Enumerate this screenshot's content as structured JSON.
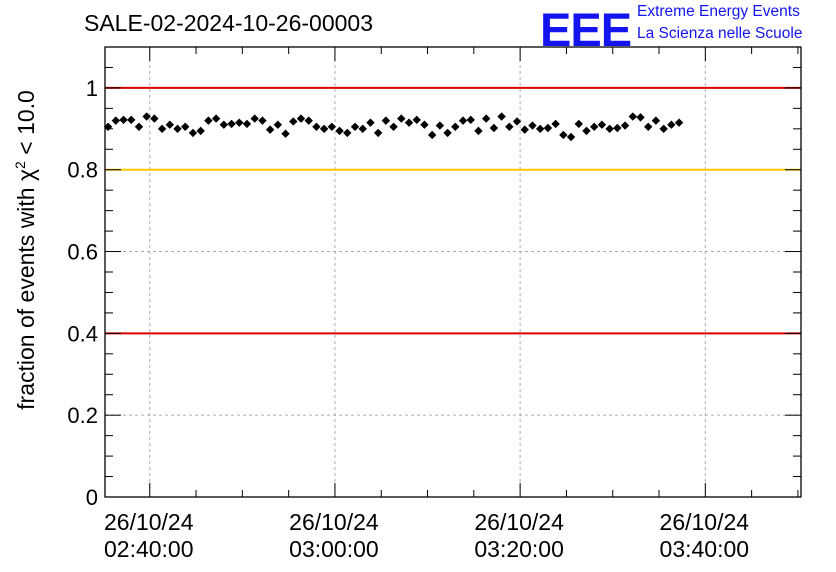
{
  "header": {
    "title": "SALE-02-2024-10-26-00003",
    "logo_text": "EEE",
    "logo_line1": "Extreme Energy Events",
    "logo_line2": "La Scienza nelle Scuole"
  },
  "colors": {
    "points": "#000000",
    "red_lines": "#e00000",
    "yellow_line": "#ffc800",
    "grid": "#aaaaaa",
    "logo": "#1414f0"
  },
  "chart_data": {
    "type": "scatter",
    "title": "SALE-02-2024-10-26-00003",
    "ylabel": "fraction of events with χ² < 10.0",
    "ylabel_main": "fraction of events with ",
    "ylabel_chi": "χ",
    "ylabel_sup": "2",
    "ylabel_tail": " < 10.0",
    "xlabel": "",
    "xlim": [
      "2024-10-26 02:35:10",
      "2024-10-26 03:50:20"
    ],
    "ylim": [
      0,
      1.1
    ],
    "grid": true,
    "x_ticks": [
      {
        "date": "26/10/24",
        "time": "02:40:00"
      },
      {
        "date": "26/10/24",
        "time": "03:00:00"
      },
      {
        "date": "26/10/24",
        "time": "03:20:00"
      },
      {
        "date": "26/10/24",
        "time": "03:40:00"
      }
    ],
    "y_ticks": [
      {
        "value": 0,
        "label": "0"
      },
      {
        "value": 0.2,
        "label": "0.2"
      },
      {
        "value": 0.4,
        "label": "0.4"
      },
      {
        "value": 0.6,
        "label": "0.6"
      },
      {
        "value": 0.8,
        "label": "0.8"
      },
      {
        "value": 1,
        "label": "1"
      }
    ],
    "reference_lines": [
      {
        "y": 1.0,
        "color": "#e00000"
      },
      {
        "y": 0.8,
        "color": "#ffc800"
      },
      {
        "y": 0.4,
        "color": "#e00000"
      }
    ],
    "x_start": "2024-10-26 02:35:30",
    "x_step_seconds": 50,
    "y_error": 0.008,
    "values": [
      0.905,
      0.92,
      0.922,
      0.922,
      0.905,
      0.93,
      0.925,
      0.9,
      0.91,
      0.9,
      0.905,
      0.89,
      0.895,
      0.92,
      0.925,
      0.91,
      0.912,
      0.915,
      0.912,
      0.925,
      0.92,
      0.898,
      0.91,
      0.888,
      0.918,
      0.925,
      0.92,
      0.905,
      0.9,
      0.905,
      0.895,
      0.89,
      0.905,
      0.9,
      0.915,
      0.89,
      0.92,
      0.905,
      0.925,
      0.915,
      0.922,
      0.91,
      0.885,
      0.908,
      0.89,
      0.905,
      0.92,
      0.922,
      0.895,
      0.925,
      0.902,
      0.93,
      0.905,
      0.918,
      0.898,
      0.908,
      0.9,
      0.902,
      0.912,
      0.885,
      0.88,
      0.912,
      0.895,
      0.905,
      0.91,
      0.9,
      0.902,
      0.908,
      0.93,
      0.928,
      0.905,
      0.92,
      0.9,
      0.91,
      0.915
    ]
  }
}
